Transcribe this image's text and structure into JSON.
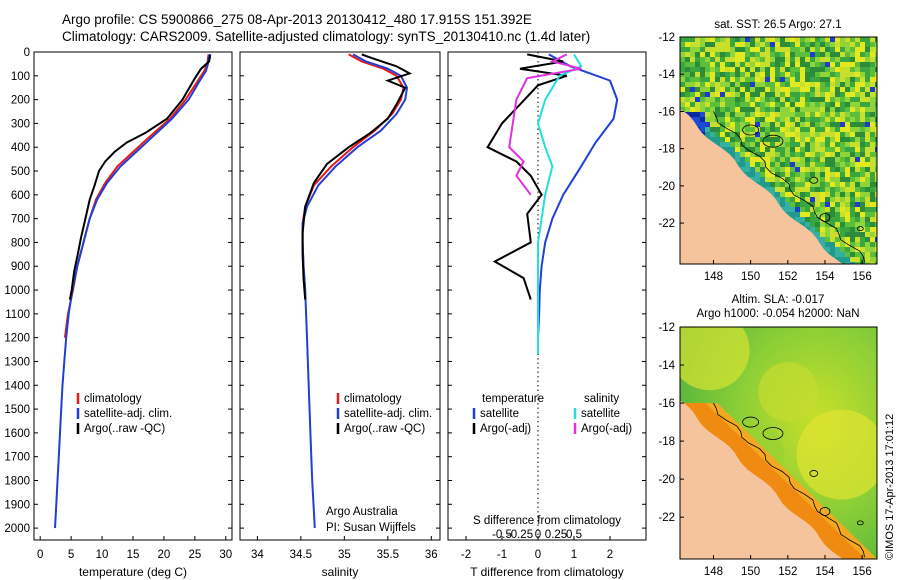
{
  "title_line1": "Argo profile: CS 5900866_275 08-Apr-2013 20130412_480 17.915S 151.392E",
  "title_line2": "Climatology: CARS2009. Satellite-adjusted climatology: synTS_20130410.nc (1.4d later)",
  "stamp": "©IMOS 17-Apr-2013 17:01:12",
  "colors": {
    "climatology": "#e41a1c",
    "satellite": "#1f3fd6",
    "argo": "#000000",
    "salinity_sat": "#22dede",
    "salinity_argo": "#e030e0",
    "land": "#f5c39c"
  },
  "chart_data": [
    {
      "type": "line",
      "name": "temperature",
      "xlabel": "temperature (deg C)",
      "xlim": [
        -1,
        31
      ],
      "xticks": [
        0,
        5,
        10,
        15,
        20,
        25,
        30
      ],
      "ylim": [
        2050,
        0
      ],
      "yticks": [
        0,
        100,
        200,
        300,
        400,
        500,
        600,
        700,
        800,
        900,
        1000,
        1100,
        1200,
        1300,
        1400,
        1500,
        1600,
        1700,
        1800,
        1900,
        2000
      ],
      "legend": [
        "climatology",
        "satellite-adj. clim.",
        "Argo(..raw -QC)"
      ],
      "series": [
        {
          "name": "climatology",
          "color": "#e41a1c",
          "points": [
            [
              27.2,
              10
            ],
            [
              27,
              50
            ],
            [
              26.5,
              80
            ],
            [
              25.5,
              120
            ],
            [
              23.5,
              200
            ],
            [
              21,
              280
            ],
            [
              17.5,
              360
            ],
            [
              15,
              420
            ],
            [
              12.5,
              480
            ],
            [
              10.5,
              550
            ],
            [
              9,
              620
            ],
            [
              8,
              700
            ],
            [
              7,
              800
            ],
            [
              6,
              900
            ],
            [
              5.3,
              1000
            ],
            [
              4.5,
              1100
            ],
            [
              4,
              1200
            ]
          ]
        },
        {
          "name": "satellite-adj. clim.",
          "color": "#1f3fd6",
          "points": [
            [
              27.3,
              10
            ],
            [
              27.1,
              50
            ],
            [
              26.8,
              80
            ],
            [
              25.8,
              120
            ],
            [
              24,
              200
            ],
            [
              21.3,
              280
            ],
            [
              18,
              360
            ],
            [
              15.5,
              420
            ],
            [
              13,
              480
            ],
            [
              10.8,
              550
            ],
            [
              9.2,
              620
            ],
            [
              8,
              700
            ],
            [
              7,
              800
            ],
            [
              6,
              900
            ],
            [
              5.2,
              1000
            ],
            [
              4.6,
              1100
            ],
            [
              4.2,
              1200
            ],
            [
              3.9,
              1300
            ],
            [
              3.6,
              1400
            ],
            [
              3.4,
              1500
            ],
            [
              3.2,
              1600
            ],
            [
              3,
              1700
            ],
            [
              2.8,
              1800
            ],
            [
              2.6,
              1900
            ],
            [
              2.4,
              2000
            ]
          ]
        },
        {
          "name": "Argo(..raw -QC)",
          "color": "#000000",
          "points": [
            [
              27.5,
              10
            ],
            [
              27.3,
              40
            ],
            [
              26,
              70
            ],
            [
              25,
              110
            ],
            [
              23,
              200
            ],
            [
              20.5,
              280
            ],
            [
              17,
              340
            ],
            [
              14,
              380
            ],
            [
              12,
              420
            ],
            [
              10.5,
              460
            ],
            [
              9.5,
              500
            ],
            [
              8.8,
              560
            ],
            [
              8,
              620
            ],
            [
              7.3,
              700
            ],
            [
              6.6,
              780
            ],
            [
              6,
              860
            ],
            [
              5.5,
              920
            ],
            [
              5.1,
              1000
            ],
            [
              4.8,
              1040
            ]
          ]
        }
      ]
    },
    {
      "type": "line",
      "name": "salinity",
      "xlabel": "salinity",
      "xlim": [
        33.8,
        36.1
      ],
      "xticks": [
        34,
        34.5,
        35,
        35.5,
        36
      ],
      "ylim": [
        2050,
        0
      ],
      "yticks": [
        0,
        100,
        200,
        300,
        400,
        500,
        600,
        700,
        800,
        900,
        1000,
        1100,
        1200,
        1300,
        1400,
        1500,
        1600,
        1700,
        1800,
        1900,
        2000
      ],
      "legend": [
        "climatology",
        "satellite-adj. clim.",
        "Argo(..raw -QC)"
      ],
      "annotation": [
        "Argo Australia",
        "PI: Susan Wijffels"
      ],
      "series": [
        {
          "name": "climatology",
          "color": "#e41a1c",
          "points": [
            [
              35.05,
              10
            ],
            [
              35.2,
              40
            ],
            [
              35.45,
              70
            ],
            [
              35.6,
              100
            ],
            [
              35.68,
              150
            ],
            [
              35.65,
              200
            ],
            [
              35.55,
              260
            ],
            [
              35.35,
              330
            ],
            [
              35.1,
              400
            ],
            [
              34.85,
              480
            ],
            [
              34.65,
              560
            ],
            [
              34.55,
              650
            ],
            [
              34.52,
              720
            ],
            [
              34.52,
              800
            ],
            [
              34.53,
              900
            ],
            [
              34.55,
              1000
            ]
          ]
        },
        {
          "name": "satellite-adj. clim.",
          "color": "#1f3fd6",
          "points": [
            [
              35.1,
              10
            ],
            [
              35.25,
              40
            ],
            [
              35.5,
              70
            ],
            [
              35.65,
              100
            ],
            [
              35.72,
              150
            ],
            [
              35.7,
              200
            ],
            [
              35.6,
              260
            ],
            [
              35.42,
              330
            ],
            [
              35.15,
              400
            ],
            [
              34.9,
              480
            ],
            [
              34.7,
              560
            ],
            [
              34.57,
              650
            ],
            [
              34.52,
              720
            ],
            [
              34.52,
              800
            ],
            [
              34.53,
              900
            ],
            [
              34.55,
              1000
            ],
            [
              34.57,
              1200
            ],
            [
              34.59,
              1400
            ],
            [
              34.61,
              1600
            ],
            [
              34.63,
              1800
            ],
            [
              34.66,
              2000
            ]
          ]
        },
        {
          "name": "Argo(..raw -QC)",
          "color": "#000000",
          "points": [
            [
              35.2,
              10
            ],
            [
              35.35,
              30
            ],
            [
              35.6,
              60
            ],
            [
              35.75,
              90
            ],
            [
              35.5,
              120
            ],
            [
              35.7,
              150
            ],
            [
              35.6,
              220
            ],
            [
              35.5,
              280
            ],
            [
              35.3,
              340
            ],
            [
              35.05,
              400
            ],
            [
              34.8,
              470
            ],
            [
              34.65,
              550
            ],
            [
              34.55,
              650
            ],
            [
              34.52,
              760
            ],
            [
              34.52,
              850
            ],
            [
              34.53,
              950
            ],
            [
              34.55,
              1040
            ]
          ]
        }
      ]
    },
    {
      "type": "line",
      "name": "difference",
      "xlabel_T": "T difference from climatology",
      "xlabel_S": "S difference from climatology",
      "xlim_T": [
        -2.5,
        3.0
      ],
      "xticks_T": [
        -2,
        -1,
        0,
        1,
        2
      ],
      "xticks_S": [
        -0.5,
        -0.25,
        0,
        0.25,
        0.5
      ],
      "ylim": [
        2050,
        0
      ],
      "legend_headers": [
        "temperature",
        "salinity"
      ],
      "legend": [
        "satellite",
        "Argo(-adj)",
        "satellite",
        "Argo(-adj)"
      ],
      "series": [
        {
          "name": "temperature satellite",
          "color": "#1f3fd6",
          "points": [
            [
              0.3,
              10
            ],
            [
              0.9,
              60
            ],
            [
              2.0,
              120
            ],
            [
              2.2,
              200
            ],
            [
              2.1,
              280
            ],
            [
              1.6,
              380
            ],
            [
              1.2,
              480
            ],
            [
              0.7,
              600
            ],
            [
              0.4,
              700
            ],
            [
              0.2,
              800
            ],
            [
              0.1,
              900
            ],
            [
              0.05,
              1000
            ],
            [
              0.03,
              1100
            ],
            [
              0,
              1200
            ],
            [
              0,
              1270
            ]
          ]
        },
        {
          "name": "temperature Argo(-adj)",
          "color": "#000000",
          "points": [
            [
              -0.3,
              10
            ],
            [
              0.7,
              40
            ],
            [
              -0.5,
              70
            ],
            [
              0.8,
              100
            ],
            [
              0,
              140
            ],
            [
              -0.5,
              220
            ],
            [
              -1.0,
              300
            ],
            [
              -1.4,
              400
            ],
            [
              -0.6,
              460
            ],
            [
              -0.2,
              520
            ],
            [
              0.1,
              600
            ],
            [
              -0.3,
              680
            ],
            [
              -0.2,
              800
            ],
            [
              -1.2,
              880
            ],
            [
              -0.4,
              950
            ],
            [
              -0.2,
              1040
            ]
          ]
        },
        {
          "name": "salinity satellite",
          "color": "#22dede",
          "points": [
            [
              0.5,
              10
            ],
            [
              0.6,
              60
            ],
            [
              0.3,
              100
            ],
            [
              0.1,
              200
            ],
            [
              0.0,
              300
            ],
            [
              0.1,
              400
            ],
            [
              0.2,
              480
            ],
            [
              0.1,
              600
            ],
            [
              0.0,
              800
            ],
            [
              0.0,
              1000
            ],
            [
              0.0,
              1200
            ],
            [
              0.0,
              1270
            ]
          ]
        },
        {
          "name": "salinity Argo(-adj)",
          "color": "#e030e0",
          "points": [
            [
              0.4,
              10
            ],
            [
              0.2,
              40
            ],
            [
              0.6,
              70
            ],
            [
              -0.15,
              110
            ],
            [
              -0.3,
              200
            ],
            [
              -0.35,
              300
            ],
            [
              -0.4,
              400
            ],
            [
              -0.2,
              460
            ],
            [
              -0.3,
              520
            ],
            [
              -0.1,
              600
            ]
          ]
        }
      ]
    },
    {
      "type": "heatmap",
      "name": "sst_map",
      "title": "sat. SST: 26.5 Argo: 27.1",
      "xticks": [
        148,
        150,
        152,
        154,
        156
      ],
      "yticks": [
        -12,
        -14,
        -16,
        -18,
        -20,
        -22
      ],
      "xlim": [
        146.2,
        156.8
      ],
      "ylim": [
        -24.2,
        -12
      ]
    },
    {
      "type": "heatmap",
      "name": "sla_map",
      "title_line1": "Altim. SLA: -0.017",
      "title_line2": "Argo h1000: -0.054 h2000: NaN",
      "xticks": [
        148,
        150,
        152,
        154,
        156
      ],
      "yticks": [
        -12,
        -14,
        -16,
        -18,
        -20,
        -22
      ],
      "xlim": [
        146.2,
        156.8
      ],
      "ylim": [
        -24.2,
        -12
      ]
    }
  ]
}
